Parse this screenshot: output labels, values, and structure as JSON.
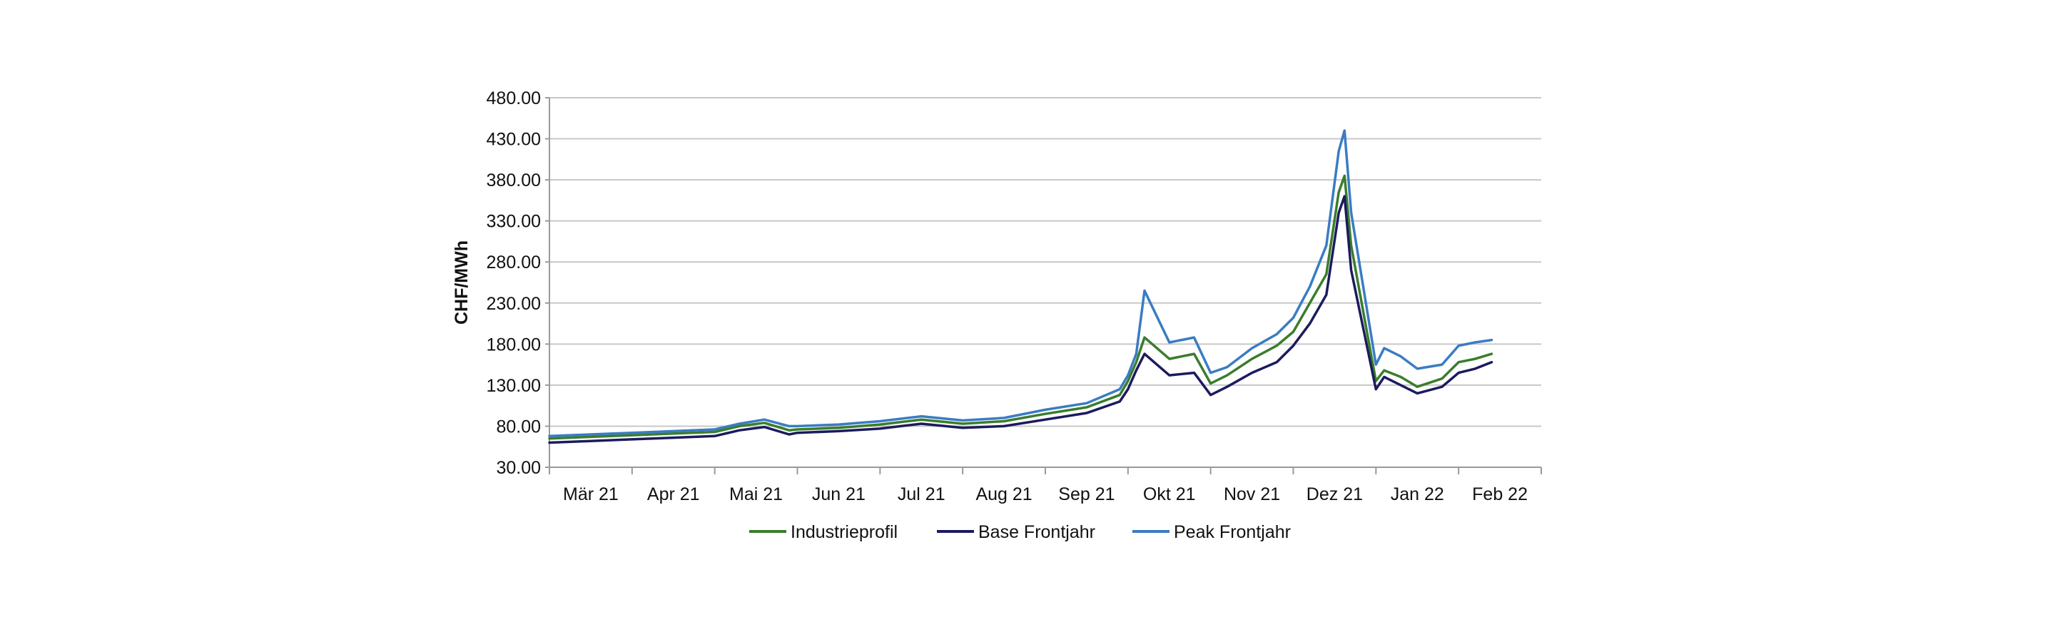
{
  "chart_data": {
    "type": "line",
    "title": "",
    "xlabel": "",
    "ylabel": "CHF/MWh",
    "ylim": [
      30,
      480
    ],
    "yticks": [
      "30.00",
      "80.00",
      "130.00",
      "180.00",
      "230.00",
      "280.00",
      "330.00",
      "380.00",
      "430.00",
      "480.00"
    ],
    "categories": [
      "Mär 21",
      "Apr 21",
      "Mai 21",
      "Jun 21",
      "Jul 21",
      "Aug 21",
      "Sep 21",
      "Okt 21",
      "Nov 21",
      "Dez 21",
      "Jan 22",
      "Feb 22"
    ],
    "grid": true,
    "legend_position": "bottom",
    "x_note": "x values are month offsets from start of Mär 21 (0 = 1 Mar 2021, 11.5 = mid Feb 2022)",
    "x": [
      0,
      0.5,
      1,
      1.5,
      2,
      2.3,
      2.6,
      2.9,
      3.0,
      3.5,
      4,
      4.5,
      5,
      5.5,
      6,
      6.5,
      6.9,
      7.0,
      7.1,
      7.2,
      7.5,
      7.8,
      8.0,
      8.2,
      8.5,
      8.8,
      9.0,
      9.2,
      9.4,
      9.55,
      9.62,
      9.7,
      10.0,
      10.1,
      10.3,
      10.5,
      10.8,
      11.0,
      11.2,
      11.4
    ],
    "series": [
      {
        "name": "Industrieprofil",
        "color": "#3a7d2c",
        "values": [
          65,
          67,
          69,
          71,
          73,
          80,
          84,
          75,
          76,
          78,
          82,
          88,
          83,
          86,
          95,
          103,
          118,
          135,
          158,
          188,
          162,
          168,
          132,
          142,
          162,
          178,
          195,
          230,
          265,
          365,
          385,
          300,
          135,
          148,
          140,
          128,
          138,
          158,
          162,
          168
        ]
      },
      {
        "name": "Base Frontjahr",
        "color": "#1b1b5e",
        "values": [
          60,
          62,
          64,
          66,
          68,
          75,
          79,
          70,
          72,
          74,
          77,
          83,
          78,
          80,
          88,
          96,
          110,
          125,
          148,
          168,
          142,
          145,
          118,
          128,
          145,
          158,
          178,
          205,
          240,
          340,
          360,
          270,
          125,
          140,
          130,
          120,
          128,
          145,
          150,
          158
        ]
      },
      {
        "name": "Peak Frontjahr",
        "color": "#3a7cc3",
        "values": [
          68,
          70,
          72,
          74,
          76,
          83,
          88,
          80,
          80,
          82,
          86,
          92,
          87,
          90,
          100,
          108,
          125,
          142,
          168,
          245,
          182,
          188,
          145,
          152,
          175,
          192,
          212,
          250,
          300,
          415,
          440,
          340,
          155,
          175,
          165,
          150,
          155,
          178,
          182,
          185
        ]
      }
    ]
  }
}
